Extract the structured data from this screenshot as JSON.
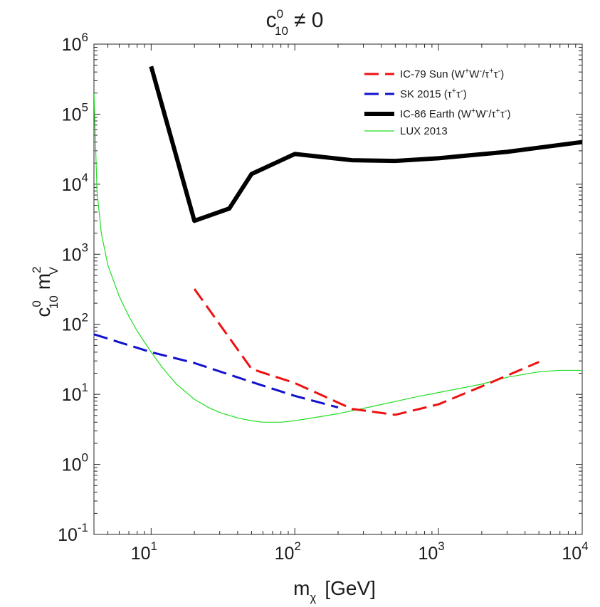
{
  "chart_data": {
    "type": "line",
    "title": {
      "base": "c",
      "sup": "0",
      "sub": "10",
      "rest": "≠ 0"
    },
    "xlabel": {
      "base": "m",
      "sub": "χ",
      "rest": "[GeV]"
    },
    "ylabel": {
      "base": "c",
      "sup": "0",
      "sub": "10",
      "mid": "m",
      "sup2": "2",
      "sub2": "V"
    },
    "x_scale": "log",
    "y_scale": "log",
    "xlim": [
      4,
      10000
    ],
    "ylim": [
      0.1,
      1000000
    ],
    "x_ticks": [
      {
        "value": 10,
        "base": "10",
        "exp": "1"
      },
      {
        "value": 100,
        "base": "10",
        "exp": "2"
      },
      {
        "value": 1000,
        "base": "10",
        "exp": "3"
      },
      {
        "value": 10000,
        "base": "10",
        "exp": "4"
      }
    ],
    "y_ticks": [
      {
        "value": 0.1,
        "base": "10",
        "exp": "-1"
      },
      {
        "value": 1,
        "base": "10",
        "exp": "0"
      },
      {
        "value": 10,
        "base": "10",
        "exp": "1"
      },
      {
        "value": 100,
        "base": "10",
        "exp": "2"
      },
      {
        "value": 1000,
        "base": "10",
        "exp": "3"
      },
      {
        "value": 10000,
        "base": "10",
        "exp": "4"
      },
      {
        "value": 100000,
        "base": "10",
        "exp": "5"
      },
      {
        "value": 1000000,
        "base": "10",
        "exp": "6"
      }
    ],
    "legend_position": "top-right",
    "series": [
      {
        "name": "IC-79 Sun (W+W-/τ+τ-)",
        "legend": {
          "prefix": "IC-79 Sun (W",
          "s1": "+",
          "m1": "W",
          "s2": "-",
          "m2": "/τ",
          "s3": "+",
          "m3": "τ",
          "s4": "-",
          "suffix": ")"
        },
        "color": "#ee1111",
        "style": "dashed",
        "width": 3,
        "x": [
          20,
          50,
          100,
          250,
          500,
          1000,
          2000,
          5000
        ],
        "y": [
          320,
          23,
          14.5,
          6.2,
          5.1,
          7.2,
          13,
          29
        ]
      },
      {
        "name": "SK 2015 (τ+τ-)",
        "legend": {
          "prefix": "SK 2015 (τ",
          "s1": "+",
          "m1": "τ",
          "s2": "-",
          "suffix": ")"
        },
        "color": "#1111cc",
        "style": "dashed",
        "width": 3,
        "x": [
          4,
          10,
          20,
          50,
          100,
          200
        ],
        "y": [
          72,
          40,
          28,
          15,
          9.5,
          6.5
        ]
      },
      {
        "name": "IC-86 Earth (W+W-/τ+τ-)",
        "legend": {
          "prefix": "IC-86 Earth (W",
          "s1": "+",
          "m1": "W",
          "s2": "-",
          "m2": "/τ",
          "s3": "+",
          "m3": "τ",
          "s4": "-",
          "suffix": ")"
        },
        "color": "#000000",
        "style": "solid",
        "width": 6,
        "x": [
          10,
          20,
          35,
          50,
          100,
          250,
          500,
          1000,
          3000,
          10000
        ],
        "y": [
          480000,
          3000,
          4500,
          14000,
          27000,
          22000,
          21500,
          23500,
          29000,
          40000
        ]
      },
      {
        "name": "LUX 2013",
        "legend": {
          "prefix": "LUX 2013"
        },
        "color": "#22dd22",
        "style": "solid",
        "width": 1.2,
        "x": [
          4,
          4.2,
          4.5,
          5,
          6,
          7,
          8,
          10,
          12,
          15,
          20,
          25,
          30,
          40,
          50,
          60,
          70,
          80,
          100,
          150,
          200,
          300,
          500,
          700,
          1000,
          2000,
          3000,
          5000,
          7000,
          10000
        ],
        "y": [
          200000,
          8000,
          2000,
          700,
          250,
          130,
          80,
          40,
          24,
          14,
          8.5,
          6.5,
          5.5,
          4.6,
          4.2,
          4.0,
          4.0,
          4.0,
          4.2,
          4.8,
          5.3,
          6.3,
          7.9,
          9.2,
          10.6,
          14,
          17.5,
          21,
          22,
          22
        ]
      }
    ]
  }
}
